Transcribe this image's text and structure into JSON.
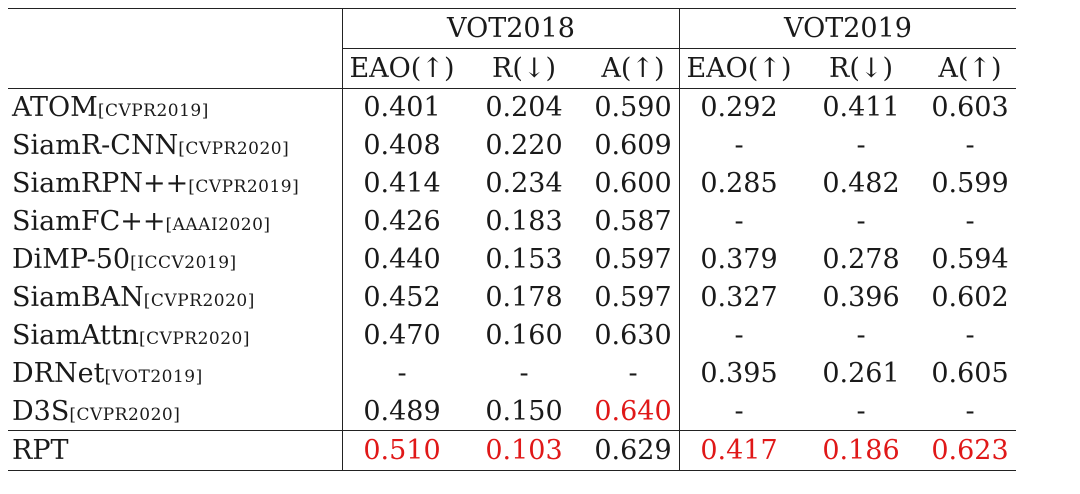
{
  "table": {
    "groups": [
      "VOT2018",
      "VOT2019"
    ],
    "metrics": [
      "EAO(↑)",
      "R(↓)",
      "A(↑)",
      "EAO(↑)",
      "R(↓)",
      "A(↑)"
    ],
    "rows": [
      {
        "name": "ATOM",
        "ref": "[CVPR2019]",
        "v": [
          "0.401",
          "0.204",
          "0.590",
          "0.292",
          "0.411",
          "0.603"
        ]
      },
      {
        "name": "SiamR-CNN",
        "ref": "[CVPR2020]",
        "v": [
          "0.408",
          "0.220",
          "0.609",
          "-",
          "-",
          "-"
        ]
      },
      {
        "name": "SiamRPN++",
        "ref": "[CVPR2019]",
        "v": [
          "0.414",
          "0.234",
          "0.600",
          "0.285",
          "0.482",
          "0.599"
        ]
      },
      {
        "name": "SiamFC++",
        "ref": "[AAAI2020]",
        "v": [
          "0.426",
          "0.183",
          "0.587",
          "-",
          "-",
          "-"
        ]
      },
      {
        "name": "DiMP-50",
        "ref": "[ICCV2019]",
        "v": [
          "0.440",
          "0.153",
          "0.597",
          "0.379",
          "0.278",
          "0.594"
        ]
      },
      {
        "name": "SiamBAN",
        "ref": "[CVPR2020]",
        "v": [
          "0.452",
          "0.178",
          "0.597",
          "0.327",
          "0.396",
          "0.602"
        ]
      },
      {
        "name": "SiamAttn",
        "ref": "[CVPR2020]",
        "v": [
          "0.470",
          "0.160",
          "0.630",
          "-",
          "-",
          "-"
        ]
      },
      {
        "name": "DRNet",
        "ref": "[VOT2019]",
        "v": [
          "-",
          "-",
          "-",
          "0.395",
          "0.261",
          "0.605"
        ]
      },
      {
        "name": "D3S",
        "ref": "[CVPR2020]",
        "v": [
          "0.489",
          "0.150",
          "0.640",
          "-",
          "-",
          "-"
        ]
      },
      {
        "name": "RPT",
        "ref": "",
        "v": [
          "0.510",
          "0.103",
          "0.629",
          "0.417",
          "0.186",
          "0.623"
        ]
      }
    ],
    "highlight_color": "#e01818"
  }
}
